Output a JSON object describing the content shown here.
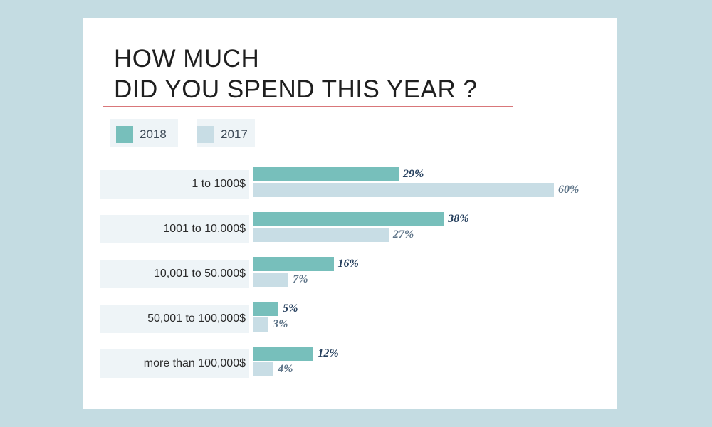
{
  "page": {
    "background": "#c4dce2",
    "card_background": "#ffffff",
    "rule_color": "#d9777a",
    "legend_box_color": "#eef4f7",
    "category_panel_color": "#eef4f7",
    "label_color_2018": "#26405e",
    "label_color_2017": "#5e7488"
  },
  "chart_data": {
    "type": "bar",
    "orientation": "horizontal",
    "title": "HOW MUCH DID YOU SPEND THIS YEAR ?",
    "title_lines": [
      "HOW MUCH",
      "DID YOU SPEND THIS YEAR ?"
    ],
    "categories": [
      "1 to 1000$",
      "1001 to 10,000$",
      "10,001 to 50,000$",
      "50,001 to 100,000$",
      "more than 100,000$"
    ],
    "series": [
      {
        "name": "2018",
        "color": "#77bfbb",
        "values": [
          29,
          38,
          16,
          5,
          12
        ],
        "labels": [
          "29%",
          "38%",
          "16%",
          "5%",
          "12%"
        ]
      },
      {
        "name": "2017",
        "color": "#c8dde5",
        "values": [
          60,
          27,
          7,
          3,
          4
        ],
        "labels": [
          "60%",
          "27%",
          "7%",
          "3%",
          "4%"
        ]
      }
    ],
    "unit": "%",
    "xlim": [
      0,
      60
    ],
    "legend_position": "top-left",
    "grid": false,
    "xlabel": "",
    "ylabel": ""
  }
}
